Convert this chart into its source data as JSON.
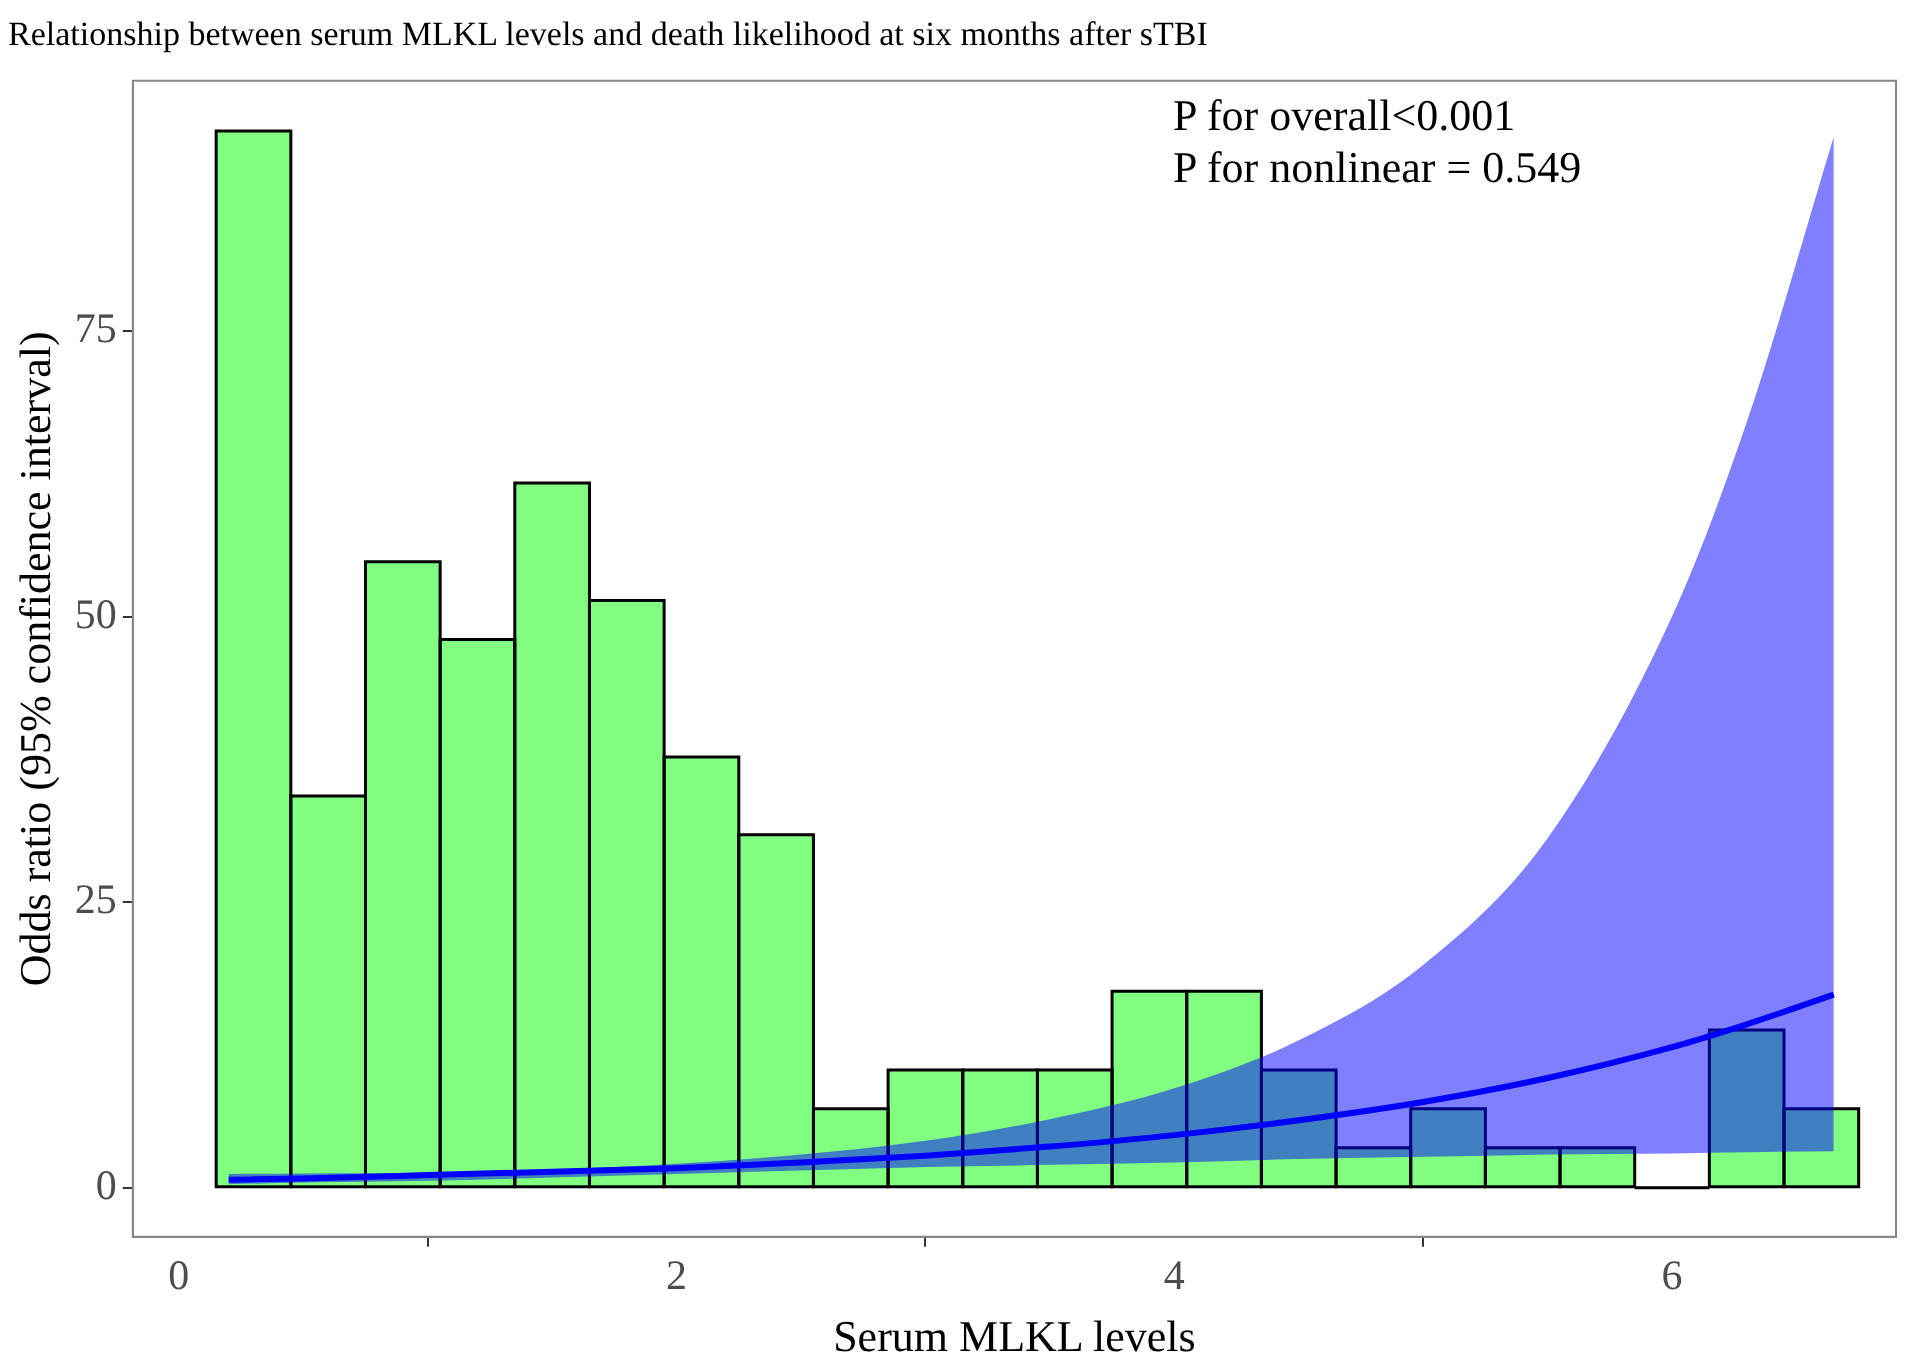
{
  "chart_data": {
    "type": "histogram",
    "title": "Relationship between serum MLKL levels and death likelihood at six months after sTBI",
    "xlabel": "Serum MLKL levels",
    "ylabel": "Odds ratio (95% confidence interval)",
    "annotations": [
      "P for overall<0.001",
      "P for nonlinear = 0.549"
    ],
    "xlim": [
      -0.185,
      6.9
    ],
    "xticks": [
      0,
      2,
      4,
      6
    ],
    "ylim": [
      -4.3,
      96.9
    ],
    "yticks": [
      0,
      25,
      50,
      75
    ],
    "grid": false,
    "legend": false,
    "color": "#80ff80",
    "bins": [
      0.15,
      0.45,
      0.75,
      1.05,
      1.35,
      1.65,
      1.95,
      2.25,
      2.55,
      2.85,
      3.15,
      3.45,
      3.75,
      4.05,
      4.35,
      4.65,
      4.95,
      5.25,
      5.55,
      5.85,
      6.15,
      6.45,
      6.75
    ],
    "values": [
      92.5,
      34.3,
      54.8,
      48.0,
      61.7,
      51.4,
      37.7,
      30.9,
      6.9,
      10.3,
      10.3,
      10.3,
      17.2,
      17.2,
      10.3,
      3.5,
      6.9,
      3.5,
      3.5,
      0,
      13.8,
      6.9
    ],
    "series": [
      {
        "type": "line",
        "color": "#0000ff",
        "x": [
          0.2,
          0.5,
          1,
          1.5,
          2,
          2.5,
          3,
          3.5,
          4,
          4.5,
          5,
          5.5,
          6,
          6.3,
          6.65
        ],
        "values": [
          0.7,
          0.8,
          1.1,
          1.4,
          1.7,
          2.2,
          2.8,
          3.6,
          4.6,
          5.9,
          7.5,
          9.6,
          12.3,
          14.3,
          16.9
        ],
        "lower": [
          0.3,
          0.45,
          0.6,
          0.9,
          1.2,
          1.5,
          1.8,
          2.0,
          2.2,
          2.5,
          2.7,
          2.9,
          3.0,
          3.1,
          3.2
        ],
        "upper": [
          1.2,
          1.25,
          1.3,
          1.6,
          2.1,
          2.9,
          4.1,
          6.0,
          8.7,
          12.9,
          19.5,
          30.6,
          50,
          67,
          92
        ]
      }
    ]
  }
}
